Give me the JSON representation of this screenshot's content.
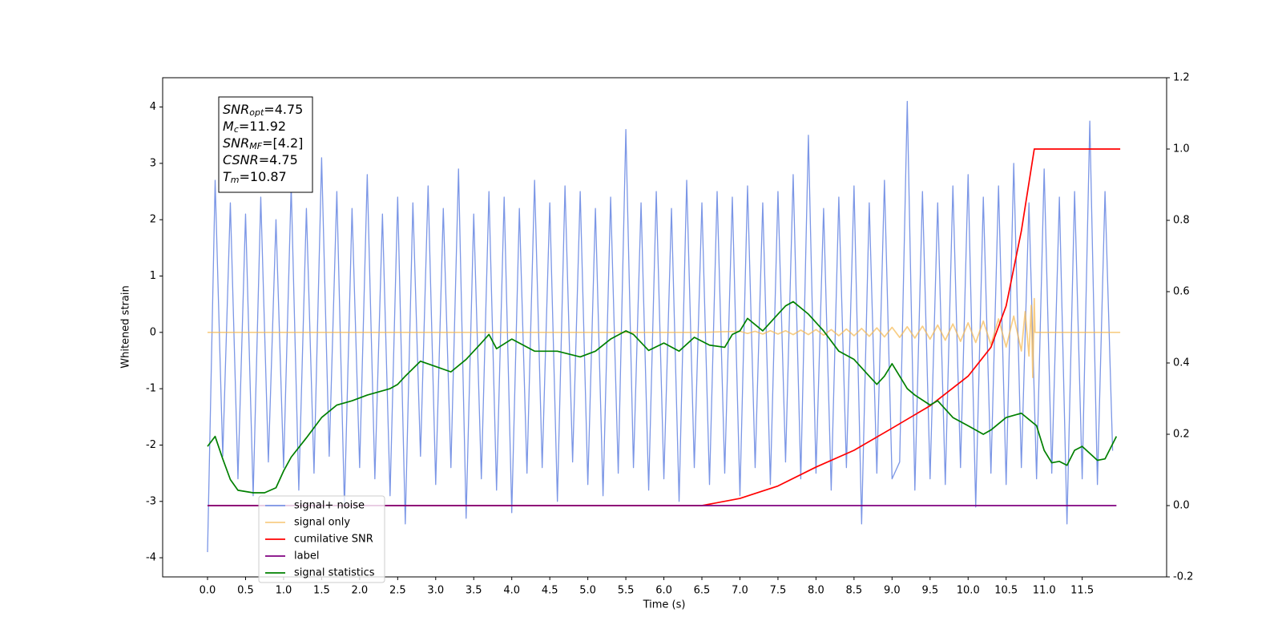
{
  "chart_data": {
    "type": "line",
    "xlabel": "Time (s)",
    "ylabel": "Whitened strain",
    "xlim": [
      -0.59,
      12.61
    ],
    "ylim": [
      -4.34,
      4.52
    ],
    "y2lim": [
      -0.2,
      1.2
    ],
    "xticks": [
      {
        "value": 0,
        "label": "0.0"
      },
      0.5,
      {
        "value": 1,
        "label": "1.0"
      },
      1.5,
      {
        "value": 2,
        "label": "2.0"
      },
      2.5,
      {
        "value": 3,
        "label": "3.0"
      },
      3.5,
      {
        "value": 4,
        "label": "4.0"
      },
      4.5,
      {
        "value": 5,
        "label": "5.0"
      },
      5.5,
      {
        "value": 6,
        "label": "6.0"
      },
      6.5,
      {
        "value": 7,
        "label": "7.0"
      },
      7.5,
      {
        "value": 8,
        "label": "8.0"
      },
      8.5,
      {
        "value": 9,
        "label": "9.0"
      },
      9.5,
      {
        "value": 10,
        "label": "10.0"
      },
      10.5,
      {
        "value": 11,
        "label": "11.0"
      },
      11.5
    ],
    "yticks": [
      -4,
      -3,
      -2,
      -1,
      0,
      1,
      2,
      3,
      4
    ],
    "y2ticks": [
      -0.2,
      {
        "value": 0,
        "label": "0.0"
      },
      0.2,
      0.4,
      0.6,
      0.8,
      {
        "value": 1,
        "label": "1.0"
      },
      1.2
    ],
    "legend": "lower left",
    "annotation": [
      {
        "main": "SNR",
        "sub": "opt",
        "rest": "=4.75"
      },
      {
        "main": "M",
        "sub": "c",
        "rest": "=11.92"
      },
      {
        "main": "SNR",
        "sub": "MF",
        "rest": "=[4.2]"
      },
      {
        "main": "CSNR",
        "sub": "",
        "rest": "=4.75"
      },
      {
        "main": "T",
        "sub": "m",
        "rest": "=10.87"
      }
    ],
    "series": [
      {
        "name": "signal+ noise",
        "color": "#7b96e6",
        "x": [
          0,
          0.1,
          0.2,
          0.3,
          0.4,
          0.5,
          0.6,
          0.7,
          0.8,
          0.9,
          1,
          1.1,
          1.2,
          1.3,
          1.4,
          1.5,
          1.6,
          1.7,
          1.8,
          1.9,
          2,
          2.1,
          2.2,
          2.3,
          2.4,
          2.5,
          2.6,
          2.7,
          2.8,
          2.9,
          3,
          3.1,
          3.2,
          3.3,
          3.4,
          3.5,
          3.6,
          3.7,
          3.8,
          3.9,
          4,
          4.1,
          4.2,
          4.3,
          4.4,
          4.5,
          4.6,
          4.7,
          4.8,
          4.9,
          5,
          5.1,
          5.2,
          5.3,
          5.4,
          5.5,
          5.6,
          5.7,
          5.8,
          5.9,
          6,
          6.1,
          6.2,
          6.3,
          6.4,
          6.5,
          6.6,
          6.7,
          6.8,
          6.9,
          7,
          7.1,
          7.2,
          7.3,
          7.4,
          7.5,
          7.6,
          7.7,
          7.8,
          7.9,
          8,
          8.1,
          8.2,
          8.3,
          8.4,
          8.5,
          8.6,
          8.7,
          8.8,
          8.9,
          9,
          9.1,
          9.2,
          9.3,
          9.4,
          9.5,
          9.6,
          9.7,
          9.8,
          9.9,
          10,
          10.1,
          10.2,
          10.3,
          10.4,
          10.5,
          10.6,
          10.7,
          10.8,
          10.9,
          11,
          11.1,
          11.2,
          11.3,
          11.4,
          11.5,
          11.6,
          11.7,
          11.8,
          11.9
        ],
        "values": [
          -3.9,
          2.7,
          -2.2,
          2.3,
          -2.6,
          2.1,
          -2.9,
          2.4,
          -2.3,
          2.0,
          -2.4,
          2.6,
          -2.8,
          2.2,
          -2.5,
          3.1,
          -2.2,
          2.5,
          -3.1,
          2.2,
          -2.4,
          2.8,
          -2.6,
          2.1,
          -2.9,
          2.4,
          -3.4,
          2.3,
          -2.2,
          2.6,
          -2.7,
          2.2,
          -2.4,
          2.9,
          -3.3,
          2.1,
          -2.6,
          2.5,
          -2.8,
          2.4,
          -3.2,
          2.2,
          -2.5,
          2.7,
          -2.4,
          2.3,
          -3.0,
          2.6,
          -2.3,
          2.5,
          -2.7,
          2.2,
          -2.9,
          2.4,
          -2.5,
          3.6,
          -2.4,
          2.3,
          -2.8,
          2.5,
          -2.6,
          2.2,
          -3.0,
          2.7,
          -2.4,
          2.3,
          -2.7,
          2.5,
          -2.5,
          2.4,
          -2.9,
          2.6,
          -2.4,
          2.3,
          -2.7,
          2.5,
          -2.3,
          2.8,
          -2.6,
          3.5,
          -2.5,
          2.2,
          -2.8,
          2.4,
          -2.4,
          2.6,
          -3.4,
          2.3,
          -2.5,
          2.7,
          -2.6,
          -2.3,
          4.1,
          -2.8,
          2.5,
          -2.6,
          2.3,
          -2.7,
          2.6,
          -2.4,
          2.8,
          -3.1,
          2.4,
          -2.5,
          2.6,
          -2.7,
          3.0,
          -2.4,
          2.3,
          -2.6,
          2.9,
          -2.5,
          2.4,
          -3.4,
          2.5,
          -2.6,
          3.75,
          -2.7,
          2.5,
          -2.1
        ]
      },
      {
        "name": "signal only",
        "color": "#f5b850",
        "x": [
          0,
          6.5,
          7,
          7.1,
          7.2,
          7.3,
          7.4,
          7.5,
          7.6,
          7.7,
          7.8,
          7.9,
          8,
          8.1,
          8.2,
          8.3,
          8.4,
          8.5,
          8.6,
          8.7,
          8.8,
          8.9,
          9,
          9.1,
          9.2,
          9.3,
          9.4,
          9.5,
          9.6,
          9.7,
          9.8,
          9.9,
          10,
          10.1,
          10.2,
          10.3,
          10.4,
          10.5,
          10.6,
          10.7,
          10.75,
          10.8,
          10.83,
          10.85,
          10.87,
          10.88,
          12
        ],
        "values": [
          0,
          0,
          0.02,
          -0.02,
          0.02,
          -0.03,
          0.03,
          -0.03,
          0.03,
          -0.04,
          0.04,
          -0.04,
          0.05,
          -0.05,
          0.05,
          -0.06,
          0.06,
          -0.06,
          0.07,
          -0.07,
          0.08,
          -0.08,
          0.09,
          -0.09,
          0.1,
          -0.1,
          0.11,
          -0.12,
          0.13,
          -0.14,
          0.15,
          -0.16,
          0.17,
          -0.18,
          0.2,
          -0.22,
          0.24,
          -0.26,
          0.29,
          -0.33,
          0.37,
          -0.42,
          0.48,
          -0.8,
          0.6,
          0,
          0
        ]
      },
      {
        "name": "cumilative SNR",
        "color": "#ff0000",
        "axis": "y2",
        "x": [
          0,
          6.5,
          7,
          7.5,
          8,
          8.5,
          9,
          9.5,
          10,
          10.3,
          10.5,
          10.7,
          10.87,
          12
        ],
        "values": [
          0,
          0,
          0.02,
          0.055,
          0.108,
          0.155,
          0.217,
          0.28,
          0.363,
          0.444,
          0.56,
          0.77,
          1,
          1
        ]
      },
      {
        "name": "label",
        "color": "#800080",
        "axis": "y2",
        "x": [
          0,
          11.95
        ],
        "values": [
          0,
          0
        ]
      },
      {
        "name": "signal statistics",
        "color": "#008000",
        "axis": "y2",
        "x": [
          0,
          0.1,
          0.2,
          0.3,
          0.4,
          0.6,
          0.75,
          0.9,
          1,
          1.1,
          1.3,
          1.5,
          1.7,
          1.9,
          2.1,
          2.4,
          2.5,
          2.6,
          2.8,
          3,
          3.2,
          3.4,
          3.6,
          3.7,
          3.8,
          4,
          4.3,
          4.6,
          4.9,
          5.1,
          5.3,
          5.5,
          5.6,
          5.8,
          6,
          6.2,
          6.4,
          6.6,
          6.8,
          6.9,
          7,
          7.1,
          7.3,
          7.5,
          7.6,
          7.7,
          7.9,
          8.1,
          8.3,
          8.5,
          8.7,
          8.8,
          8.9,
          9,
          9.1,
          9.2,
          9.3,
          9.5,
          9.6,
          9.8,
          10,
          10.2,
          10.3,
          10.5,
          10.7,
          10.9,
          11,
          11.1,
          11.2,
          11.3,
          11.4,
          11.5,
          11.7,
          11.8,
          11.95
        ],
        "values": [
          0.166,
          0.194,
          0.131,
          0.073,
          0.043,
          0.036,
          0.036,
          0.05,
          0.097,
          0.136,
          0.19,
          0.247,
          0.282,
          0.294,
          0.31,
          0.328,
          0.34,
          0.363,
          0.405,
          0.39,
          0.375,
          0.41,
          0.456,
          0.48,
          0.44,
          0.467,
          0.433,
          0.433,
          0.417,
          0.433,
          0.467,
          0.49,
          0.48,
          0.435,
          0.456,
          0.433,
          0.472,
          0.45,
          0.444,
          0.48,
          0.49,
          0.525,
          0.49,
          0.537,
          0.56,
          0.572,
          0.537,
          0.49,
          0.433,
          0.41,
          0.363,
          0.34,
          0.363,
          0.398,
          0.363,
          0.328,
          0.31,
          0.282,
          0.294,
          0.247,
          0.224,
          0.2,
          0.212,
          0.247,
          0.259,
          0.224,
          0.155,
          0.12,
          0.124,
          0.113,
          0.155,
          0.166,
          0.127,
          0.131,
          0.194
        ]
      }
    ]
  }
}
